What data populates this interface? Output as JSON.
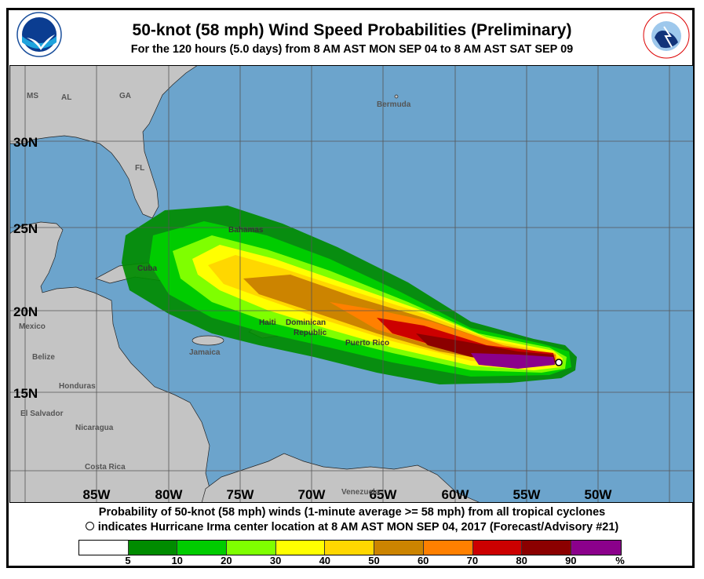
{
  "header": {
    "title": "50-knot (58 mph) Wind Speed Probabilities (Preliminary)",
    "subtitle": "For the 120 hours (5.0 days) from 8 AM AST MON SEP 04 to 8 AM AST SAT SEP 09",
    "left_logo": "NOAA",
    "right_logo": "NATIONAL WEATHER SERVICE"
  },
  "map": {
    "colors": {
      "ocean": "#6CA4CC",
      "land": "#C4C4C4",
      "grid": "#555555"
    },
    "lat_labels": [
      "30N",
      "25N",
      "20N",
      "15N"
    ],
    "lon_labels": [
      "85W",
      "80W",
      "75W",
      "70W",
      "65W",
      "60W",
      "55W",
      "50W"
    ],
    "place_labels": {
      "ms": "MS",
      "al": "AL",
      "ga": "GA",
      "fl": "FL",
      "bermuda": "Bermuda",
      "bahamas": "Bahamas",
      "cuba": "Cuba",
      "mexico": "Mexico",
      "haiti": "Haiti",
      "dominican": "Dominican",
      "republic": "Republic",
      "puerto_rico": "Puerto Rico",
      "jamaica": "Jamaica",
      "belize": "Belize",
      "honduras": "Honduras",
      "el_salvador": "El Salvador",
      "nicaragua": "Nicaragua",
      "costa_rica": "Costa Rica",
      "venezuela": "Venezuela"
    },
    "storm_center": {
      "name": "Hurricane Irma",
      "lat": 16.9,
      "lon": -52.4,
      "marker": "open-circle"
    }
  },
  "footer": {
    "line1": "Probability of 50-knot (58 mph) winds (1-minute average >= 58 mph) from all tropical cyclones",
    "line2": "indicates Hurricane Irma center location at 8 AM AST MON SEP 04, 2017 (Forecast/Advisory #21)"
  },
  "legend": {
    "colors": [
      "#FFFFFF",
      "#008B00",
      "#00CC00",
      "#7FFF00",
      "#FFFF00",
      "#FFD700",
      "#CC8400",
      "#FF8000",
      "#CC0000",
      "#8B0000",
      "#8B008B"
    ],
    "labels": [
      "5",
      "10",
      "20",
      "30",
      "40",
      "50",
      "60",
      "70",
      "80",
      "90",
      "%"
    ]
  }
}
